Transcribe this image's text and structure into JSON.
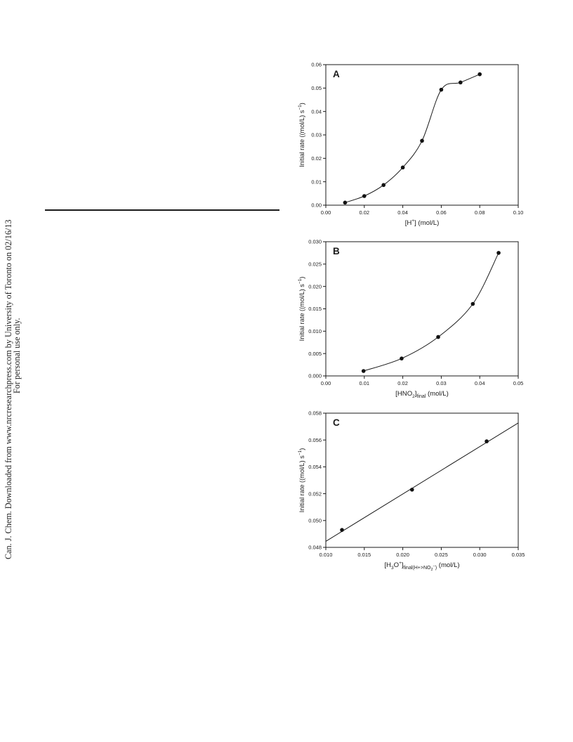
{
  "watermark": {
    "line1": "Can. J. Chem. Downloaded from www.nrcresearchpress.com by University of Toronto on 02/16/13",
    "line2": "For personal use only."
  },
  "chart_data": [
    {
      "type": "line",
      "panel": "A",
      "ylabel_main": "Initial rate ((mol/L) s",
      "ylabel_sup": "−1",
      "ylabel_end": ")",
      "xlabel": {
        "pre": "[H",
        "sup": "+",
        "post": "] (mol/L)"
      },
      "xlim": [
        0,
        0.1
      ],
      "ylim": [
        0,
        0.06
      ],
      "xticks": [
        "0.00",
        "0.02",
        "0.04",
        "0.06",
        "0.08",
        "0.10"
      ],
      "yticks": [
        "0.00",
        "0.01",
        "0.02",
        "0.03",
        "0.04",
        "0.05",
        "0.06"
      ],
      "series": [
        {
          "x": [
            0.01,
            0.02,
            0.03,
            0.04,
            0.05,
            0.06,
            0.07,
            0.08
          ],
          "y": [
            0.0011,
            0.0039,
            0.0086,
            0.0161,
            0.0275,
            0.0493,
            0.0524,
            0.0559
          ]
        }
      ],
      "fit": "smooth"
    },
    {
      "type": "line",
      "panel": "B",
      "ylabel_main": "Initial rate ((mol/L) s",
      "ylabel_sup": "−1",
      "ylabel_end": ")",
      "xlabel": {
        "pre": "[HNO",
        "sub": "2",
        "mid": "]",
        "sub2": "final",
        "post": " (mol/L)"
      },
      "xlim": [
        0,
        0.05
      ],
      "ylim": [
        0,
        0.03
      ],
      "xticks": [
        "0.00",
        "0.01",
        "0.02",
        "0.03",
        "0.04",
        "0.05"
      ],
      "yticks": [
        "0.000",
        "0.005",
        "0.010",
        "0.015",
        "0.020",
        "0.025",
        "0.030"
      ],
      "series": [
        {
          "x": [
            0.0098,
            0.0197,
            0.0292,
            0.0382,
            0.0449
          ],
          "y": [
            0.0011,
            0.0039,
            0.0087,
            0.0161,
            0.0275
          ]
        }
      ],
      "fit": "smooth"
    },
    {
      "type": "scatter",
      "panel": "C",
      "ylabel_main": "Initial rate ((mol/L) s",
      "ylabel_sup": "−1",
      "ylabel_end": ")",
      "xlabel": {
        "pre": "[H",
        "sub": "3",
        "mid": "O",
        "sup": "+",
        "close": "]",
        "sub2": "final(H+>NO",
        "sub3": "2",
        "supsub": "−",
        "end": ")",
        "post": " (mol/L)"
      },
      "xlim": [
        0.01,
        0.035
      ],
      "ylim": [
        0.048,
        0.058
      ],
      "xticks": [
        "0.010",
        "0.015",
        "0.020",
        "0.025",
        "0.030",
        "0.035"
      ],
      "yticks": [
        "0.048",
        "0.050",
        "0.052",
        "0.054",
        "0.056",
        "0.058"
      ],
      "series": [
        {
          "x": [
            0.0121,
            0.0212,
            0.0309
          ],
          "y": [
            0.0493,
            0.0523,
            0.0559
          ]
        }
      ],
      "fit_line": {
        "x": [
          0.01,
          0.035
        ],
        "y": [
          0.04845,
          0.05727
        ]
      }
    }
  ]
}
